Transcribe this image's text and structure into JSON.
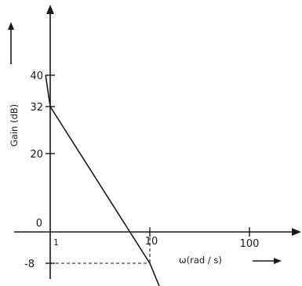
{
  "chart_data": {
    "type": "line",
    "title": "",
    "xlabel": "ω(rad / s)",
    "ylabel": "Gain (dB)",
    "x_scale": "log",
    "xlim": [
      1,
      200
    ],
    "ylim": [
      -12,
      44
    ],
    "x_ticks": [
      {
        "value": 1,
        "label": "1"
      },
      {
        "value": 10,
        "label": "10"
      },
      {
        "value": 100,
        "label": "100"
      }
    ],
    "y_ticks": [
      {
        "value": 40,
        "label": "40"
      },
      {
        "value": 32,
        "label": "32"
      },
      {
        "value": 20,
        "label": "20"
      },
      {
        "value": 0,
        "label": "0"
      },
      {
        "value": -8,
        "label": "-8"
      }
    ],
    "series": [
      {
        "x": [
          0.9,
          1,
          10,
          13
        ],
        "y": [
          40,
          32,
          -8,
          -15
        ]
      }
    ],
    "reference_lines": [
      {
        "from": [
          1,
          -8
        ],
        "to": [
          10,
          -8
        ],
        "style": "dashed"
      },
      {
        "from": [
          10,
          0
        ],
        "to": [
          10,
          -8
        ],
        "style": "dashed"
      }
    ],
    "grid": false,
    "colors": {
      "line": "#1a1a1a",
      "axes": "#1a1a1a"
    }
  }
}
